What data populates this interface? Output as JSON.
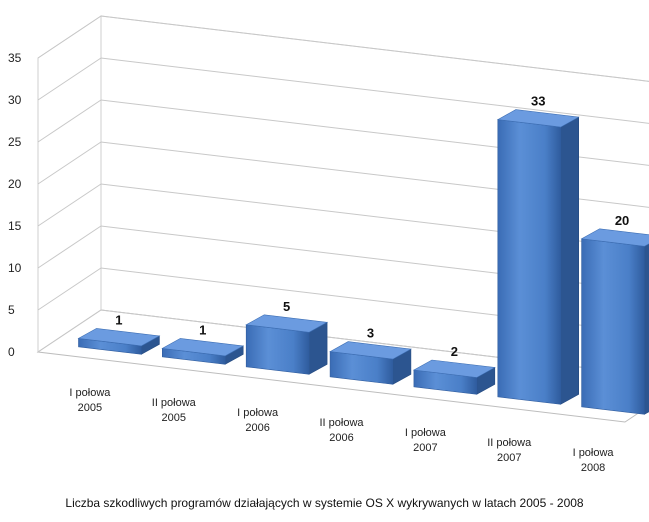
{
  "chart_data": {
    "type": "bar",
    "style": "3d-column",
    "categories": [
      [
        "I połowa",
        "2005"
      ],
      [
        "II połowa",
        "2005"
      ],
      [
        "I połowa",
        "2006"
      ],
      [
        "II połowa",
        "2006"
      ],
      [
        "I połowa",
        "2007"
      ],
      [
        "II połowa",
        "2007"
      ],
      [
        "I połowa",
        "2008"
      ]
    ],
    "values": [
      1,
      1,
      5,
      3,
      2,
      33,
      20
    ],
    "data_labels": [
      "1",
      "1",
      "5",
      "3",
      "2",
      "33",
      "20"
    ],
    "yticks": [
      "0",
      "5",
      "10",
      "15",
      "20",
      "25",
      "30",
      "35"
    ],
    "ylim": [
      0,
      35
    ],
    "grid": true,
    "bar_color": "#4a7fc8",
    "title": "Liczba szkodliwych programów działających w systemie OS X wykrywanych w latach 2005 - 2008",
    "xlabel": "",
    "ylabel": ""
  }
}
